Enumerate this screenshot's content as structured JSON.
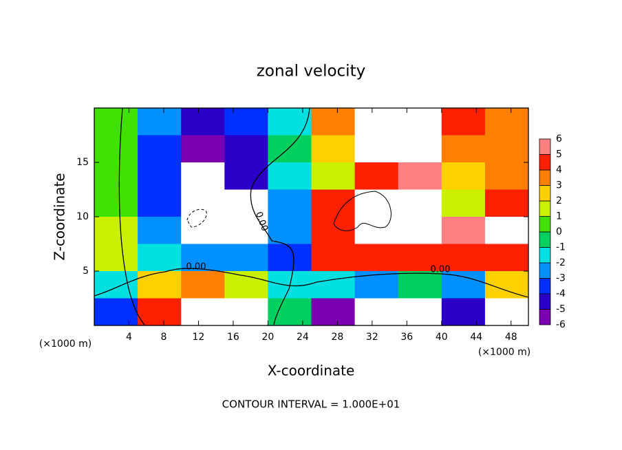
{
  "chart_data": {
    "type": "contour",
    "title": "zonal velocity",
    "x_label": "X-coordinate",
    "y_label": "Z-coordinate",
    "x_unit": "(×1000 m)",
    "y_unit": "(×1000 m)",
    "footer": "CONTOUR INTERVAL = 1.000E+01",
    "contour_labels": [
      "0.00",
      "0.00",
      "0.00"
    ],
    "xlim": [
      0,
      50
    ],
    "ylim": [
      0,
      20
    ],
    "xticks": [
      4,
      8,
      12,
      16,
      20,
      24,
      28,
      32,
      36,
      40,
      44,
      48
    ],
    "yticks": [
      5,
      10,
      15
    ],
    "x": [
      2.5,
      7.5,
      12.5,
      17.5,
      22.5,
      27.5,
      32.5,
      37.5,
      42.5,
      47.5
    ],
    "y": [
      18.75,
      16.25,
      13.75,
      11.25,
      8.75,
      6.25,
      3.75,
      1.25
    ],
    "z": [
      [
        0.5,
        -2,
        -4.5,
        -3.5,
        -1,
        4,
        8,
        8,
        5,
        4
      ],
      [
        0.5,
        -3,
        -5,
        -4,
        -0.5,
        3,
        8,
        8,
        4,
        4
      ],
      [
        1,
        -3,
        -6.5,
        -4,
        -1,
        2,
        5,
        6,
        3,
        3.5
      ],
      [
        1,
        -3,
        -8,
        -7,
        -2,
        5,
        8,
        8,
        2,
        5
      ],
      [
        2,
        -2,
        -8,
        -6.5,
        -2,
        5,
        8,
        8,
        6,
        7
      ],
      [
        1.5,
        -1,
        -2,
        -2.5,
        -3,
        4.5,
        5,
        5,
        5,
        5
      ],
      [
        -1,
        3,
        4,
        2,
        -1,
        -1,
        -2,
        0,
        -2,
        3
      ],
      [
        -3,
        5,
        8,
        7,
        0,
        -5,
        -8,
        -8,
        -4,
        -8
      ]
    ],
    "colorbar": {
      "levels": [
        -6,
        -5,
        -4,
        -3,
        -2,
        -1,
        0,
        1,
        2,
        3,
        4,
        5,
        6
      ],
      "colors": [
        "#7a00b0",
        "#2a00c8",
        "#0030ff",
        "#0090ff",
        "#00e0e0",
        "#00d060",
        "#40e000",
        "#c8f000",
        "#ffd000",
        "#ff8000",
        "#ff2000",
        "#ff8080"
      ]
    }
  }
}
